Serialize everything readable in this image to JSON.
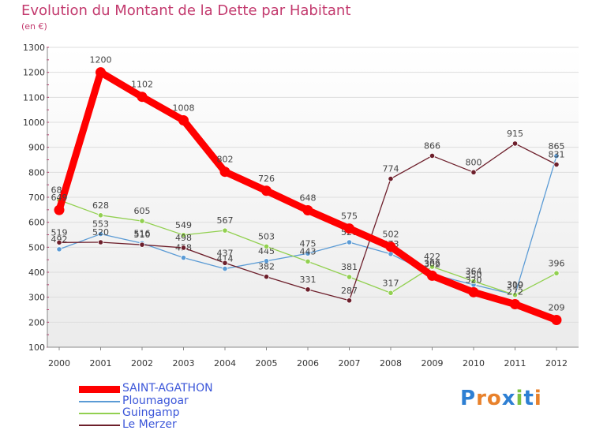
{
  "header": {
    "title": "Evolution du Montant de la Dette par Habitant",
    "unit": "(en €)"
  },
  "logo": {
    "text": "Proxiti"
  },
  "colors": {
    "title": "#c33a6e",
    "legend_text": "#3b56d9",
    "grid": "#dddddd",
    "axis_tick": "#c0316a"
  },
  "chart_data": {
    "type": "line",
    "title": "Evolution du Montant de la Dette par Habitant",
    "ylabel": "(en €)",
    "xlabel": "",
    "ylim": [
      100,
      1300
    ],
    "yticks": [
      100,
      200,
      300,
      400,
      500,
      600,
      700,
      800,
      900,
      1000,
      1100,
      1200,
      1300
    ],
    "x": [
      "2000",
      "2001",
      "2002",
      "2003",
      "2004",
      "2005",
      "2006",
      "2007",
      "2008",
      "2009",
      "2010",
      "2011",
      "2012"
    ],
    "legend_position": "bottom-left",
    "series": [
      {
        "name": "SAINT-AGATHON",
        "color": "#ff0000",
        "thick": true,
        "values": [
          649,
          1200,
          1102,
          1008,
          802,
          726,
          648,
          575,
          502,
          386,
          320,
          272,
          209
        ]
      },
      {
        "name": "Ploumagoar",
        "color": "#5b9bd5",
        "thick": false,
        "values": [
          492,
          553,
          516,
          458,
          414,
          445,
          475,
          520,
          473,
          392,
          350,
          310,
          865
        ]
      },
      {
        "name": "Guingamp",
        "color": "#92d050",
        "thick": false,
        "values": [
          689,
          628,
          605,
          549,
          567,
          503,
          443,
          381,
          317,
          422,
          364,
          309,
          396
        ]
      },
      {
        "name": "Le Merzer",
        "color": "#6d1f2b",
        "thick": false,
        "values": [
          519,
          520,
          510,
          498,
          437,
          382,
          331,
          287,
          774,
          866,
          800,
          915,
          831
        ]
      }
    ]
  }
}
